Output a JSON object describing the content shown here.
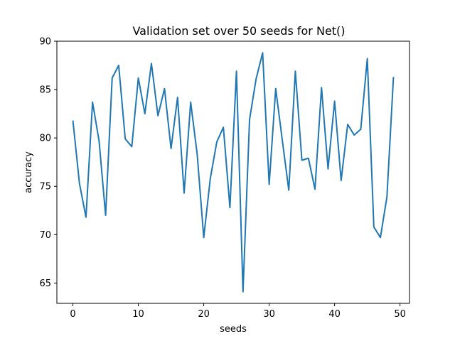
{
  "chart_data": {
    "type": "line",
    "title": "Validation set over 50 seeds for Net()",
    "xlabel": "seeds",
    "ylabel": "accuracy",
    "xlim": [
      -2.45,
      51.45
    ],
    "ylim": [
      62.9,
      90
    ],
    "xticks": [
      0,
      10,
      20,
      30,
      40,
      50
    ],
    "yticks": [
      65,
      70,
      75,
      80,
      85,
      90
    ],
    "grid": false,
    "series_color": "#1f77b4",
    "series": [
      {
        "x": [
          0,
          1,
          2,
          3,
          4,
          5,
          6,
          7,
          8,
          9,
          10,
          11,
          12,
          13,
          14,
          15,
          16,
          17,
          18,
          19,
          20,
          21,
          22,
          23,
          24,
          25,
          26,
          27,
          28,
          29,
          30,
          31,
          32,
          33,
          34,
          35,
          36,
          37,
          38,
          39,
          40,
          41,
          42,
          43,
          44,
          45,
          46,
          47,
          48,
          49
        ],
        "values": [
          81.8,
          75.3,
          71.8,
          83.7,
          79.7,
          72.0,
          86.2,
          87.5,
          79.9,
          79.1,
          86.2,
          82.5,
          87.7,
          82.3,
          85.1,
          78.9,
          84.2,
          74.3,
          83.7,
          78.3,
          69.7,
          75.8,
          79.6,
          81.1,
          72.8,
          86.9,
          64.1,
          81.9,
          86.1,
          88.8,
          75.2,
          85.1,
          79.8,
          74.6,
          86.9,
          77.7,
          77.9,
          74.7,
          85.2,
          76.8,
          83.8,
          75.6,
          81.4,
          80.3,
          80.9,
          88.2,
          70.8,
          69.7,
          73.9,
          86.3
        ]
      }
    ]
  }
}
